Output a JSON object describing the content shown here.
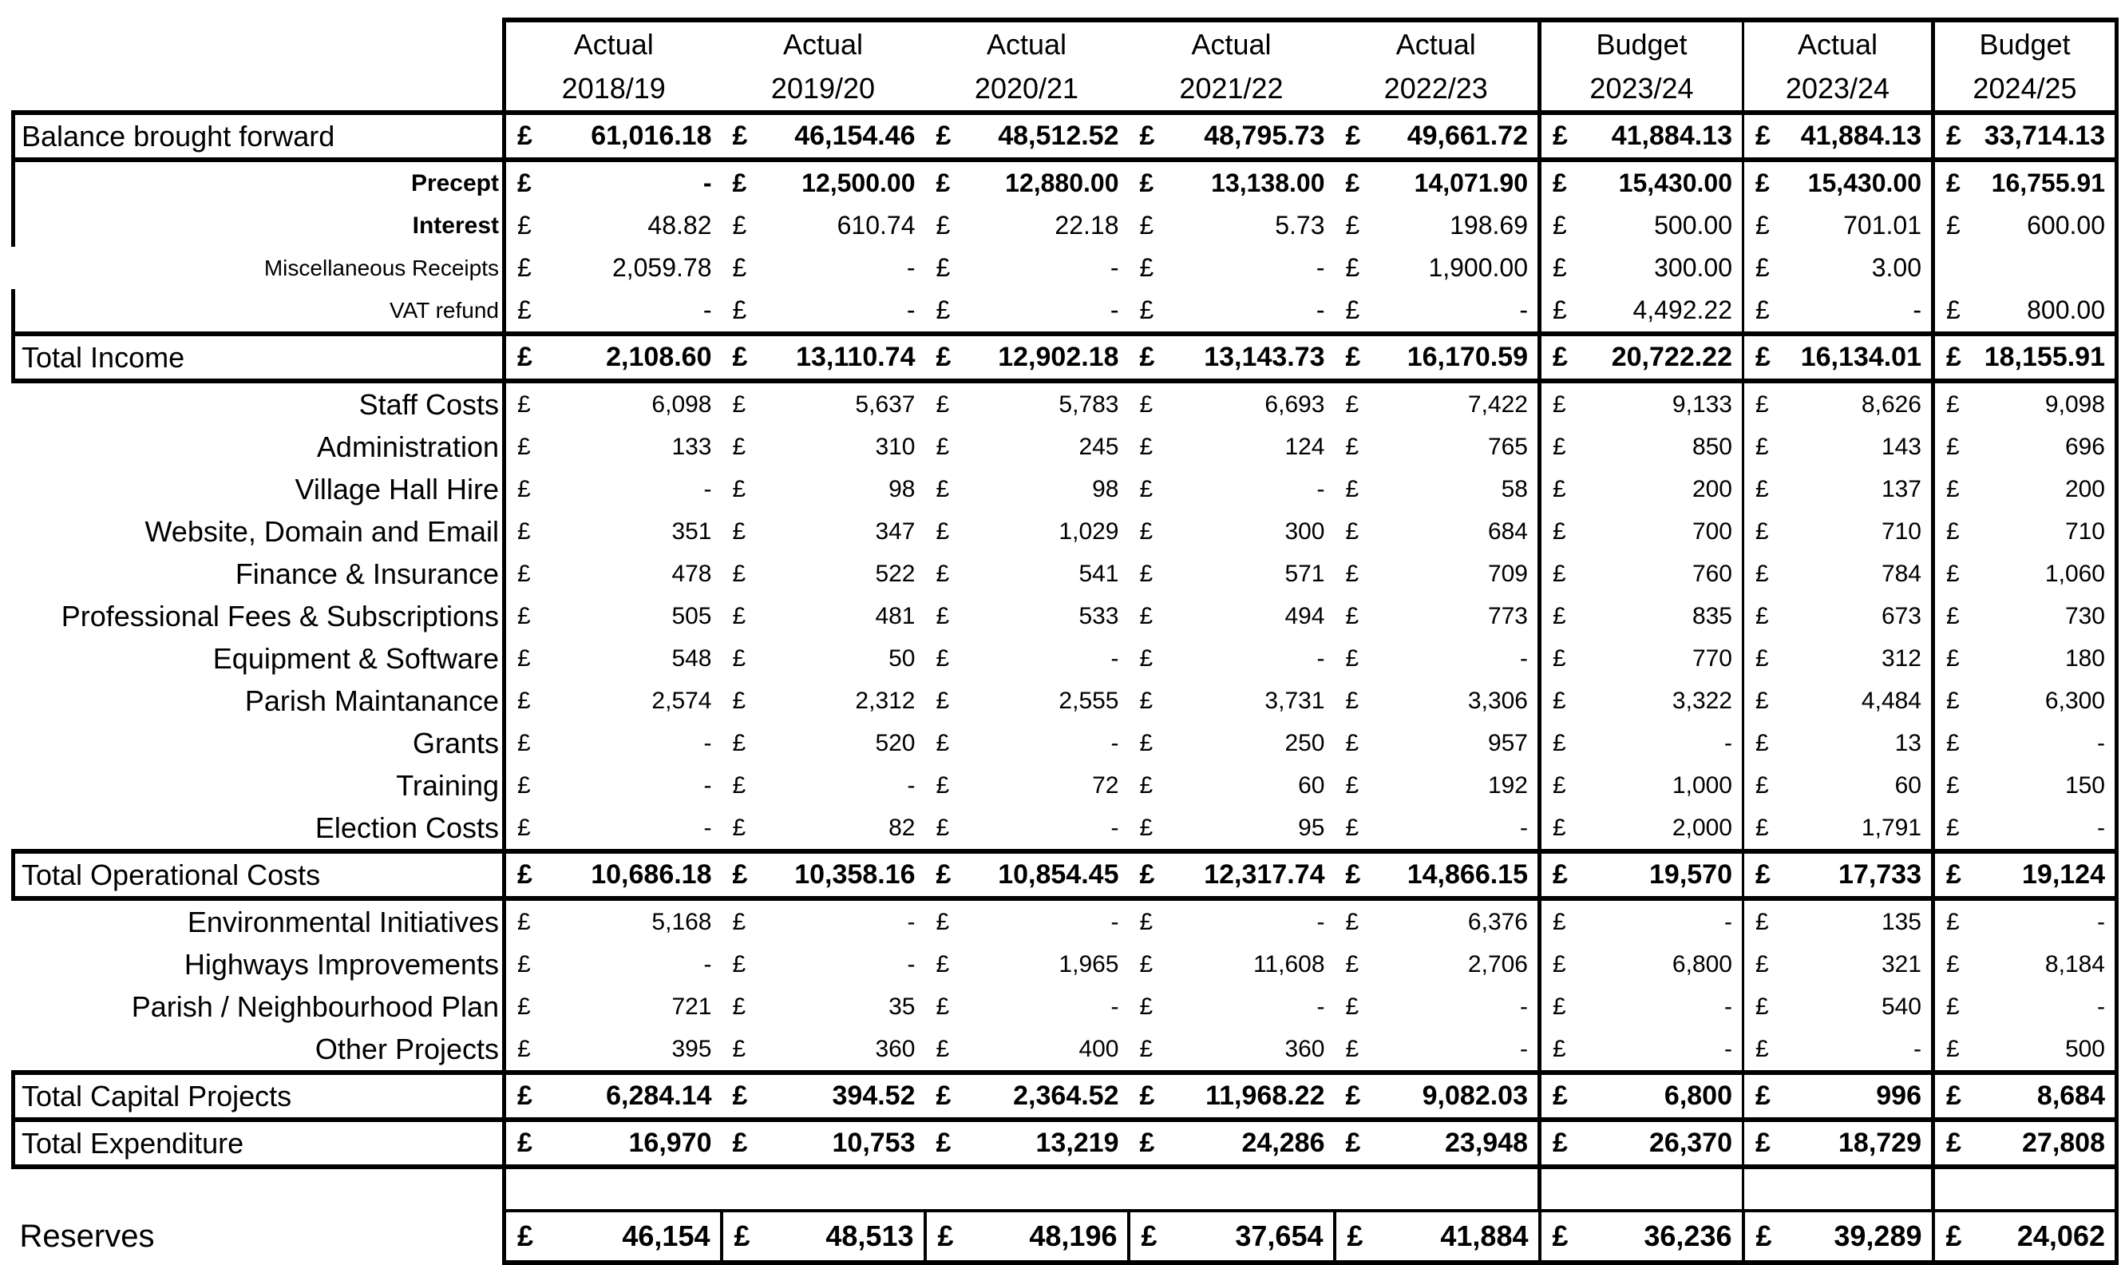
{
  "columns": [
    {
      "line1": "Actual",
      "line2": "2018/19"
    },
    {
      "line1": "Actual",
      "line2": "2019/20"
    },
    {
      "line1": "Actual",
      "line2": "2020/21"
    },
    {
      "line1": "Actual",
      "line2": "2021/22"
    },
    {
      "line1": "Actual",
      "line2": "2022/23"
    },
    {
      "line1": "Budget",
      "line2": "2023/24"
    },
    {
      "line1": "Actual",
      "line2": "2023/24"
    },
    {
      "line1": "Budget",
      "line2": "2024/25"
    }
  ],
  "currency_symbol": "£",
  "rows": [
    {
      "label": "Balance brought forward",
      "kind": "total",
      "values": [
        "61,016.18",
        "46,154.46",
        "48,512.52",
        "48,795.73",
        "49,661.72",
        "41,884.13",
        "41,884.13",
        "33,714.13"
      ]
    },
    {
      "label": "Precept",
      "kind": "inc bold",
      "values": [
        "-",
        "12,500.00",
        "12,880.00",
        "13,138.00",
        "14,071.90",
        "15,430.00",
        "15,430.00",
        "16,755.91"
      ]
    },
    {
      "label": "Interest",
      "kind": "inc",
      "values": [
        "48.82",
        "610.74",
        "22.18",
        "5.73",
        "198.69",
        "500.00",
        "701.01",
        "600.00"
      ]
    },
    {
      "label": "Miscellaneous Receipts",
      "kind": "inc light nol",
      "values": [
        "2,059.78",
        "-",
        "-",
        "-",
        "1,900.00",
        "300.00",
        "3.00",
        null
      ]
    },
    {
      "label": "VAT refund",
      "kind": "inc light",
      "values": [
        "-",
        "-",
        "-",
        "-",
        "-",
        "4,492.22",
        "-",
        "800.00"
      ]
    },
    {
      "label": "Total Income",
      "kind": "total",
      "values": [
        "2,108.60",
        "13,110.74",
        "12,902.18",
        "13,143.73",
        "16,170.59",
        "20,722.22",
        "16,134.01",
        "18,155.91"
      ]
    },
    {
      "label": "Staff Costs",
      "kind": "exp",
      "values": [
        "6,098",
        "5,637",
        "5,783",
        "6,693",
        "7,422",
        "9,133",
        "8,626",
        "9,098"
      ]
    },
    {
      "label": "Administration",
      "kind": "exp",
      "values": [
        "133",
        "310",
        "245",
        "124",
        "765",
        "850",
        "143",
        "696"
      ]
    },
    {
      "label": "Village Hall Hire",
      "kind": "exp",
      "values": [
        "-",
        "98",
        "98",
        "-",
        "58",
        "200",
        "137",
        "200"
      ]
    },
    {
      "label": "Website, Domain and Email",
      "kind": "exp",
      "values": [
        "351",
        "347",
        "1,029",
        "300",
        "684",
        "700",
        "710",
        "710"
      ]
    },
    {
      "label": "Finance & Insurance",
      "kind": "exp",
      "values": [
        "478",
        "522",
        "541",
        "571",
        "709",
        "760",
        "784",
        "1,060"
      ]
    },
    {
      "label": "Professional Fees & Subscriptions",
      "kind": "exp",
      "values": [
        "505",
        "481",
        "533",
        "494",
        "773",
        "835",
        "673",
        "730"
      ]
    },
    {
      "label": "Equipment & Software",
      "kind": "exp",
      "values": [
        "548",
        "50",
        "-",
        "-",
        "-",
        "770",
        "312",
        "180"
      ]
    },
    {
      "label": "Parish Maintanance",
      "kind": "exp",
      "values": [
        "2,574",
        "2,312",
        "2,555",
        "3,731",
        "3,306",
        "3,322",
        "4,484",
        "6,300"
      ]
    },
    {
      "label": "Grants",
      "kind": "exp",
      "values": [
        "-",
        "520",
        "-",
        "250",
        "957",
        "-",
        "13",
        "-"
      ]
    },
    {
      "label": "Training",
      "kind": "exp",
      "values": [
        "-",
        "-",
        "72",
        "60",
        "192",
        "1,000",
        "60",
        "150"
      ]
    },
    {
      "label": "Election Costs",
      "kind": "exp",
      "values": [
        "-",
        "82",
        "-",
        "95",
        "-",
        "2,000",
        "1,791",
        "-"
      ]
    },
    {
      "label": "Total Operational Costs",
      "kind": "total",
      "values": [
        "10,686.18",
        "10,358.16",
        "10,854.45",
        "12,317.74",
        "14,866.15",
        "19,570",
        "17,733",
        "19,124"
      ]
    },
    {
      "label": "Environmental Initiatives",
      "kind": "exp",
      "values": [
        "5,168",
        "-",
        "-",
        "-",
        "6,376",
        "-",
        "135",
        "-"
      ]
    },
    {
      "label": "Highways Improvements",
      "kind": "exp",
      "values": [
        "-",
        "-",
        "1,965",
        "11,608",
        "2,706",
        "6,800",
        "321",
        "8,184"
      ]
    },
    {
      "label": "Parish / Neighbourhood Plan",
      "kind": "exp",
      "values": [
        "721",
        "35",
        "-",
        "-",
        "-",
        "-",
        "540",
        "-"
      ]
    },
    {
      "label": "Other Projects",
      "kind": "exp",
      "values": [
        "395",
        "360",
        "400",
        "360",
        "-",
        "-",
        "-",
        "500"
      ]
    },
    {
      "label": "Total Capital Projects",
      "kind": "total",
      "values": [
        "6,284.14",
        "394.52",
        "2,364.52",
        "11,968.22",
        "9,082.03",
        "6,800",
        "996",
        "8,684"
      ]
    },
    {
      "label": "Total Expenditure",
      "kind": "total",
      "values": [
        "16,970",
        "10,753",
        "13,219",
        "24,286",
        "23,948",
        "26,370",
        "18,729",
        "27,808"
      ]
    },
    {
      "label": null,
      "kind": "gap",
      "values": [
        null,
        null,
        null,
        null,
        null,
        null,
        null,
        null
      ]
    },
    {
      "label": "Reserves",
      "kind": "res",
      "values": [
        "46,154",
        "48,513",
        "48,196",
        "37,654",
        "41,884",
        "36,236",
        "39,289",
        "24,062"
      ]
    }
  ]
}
